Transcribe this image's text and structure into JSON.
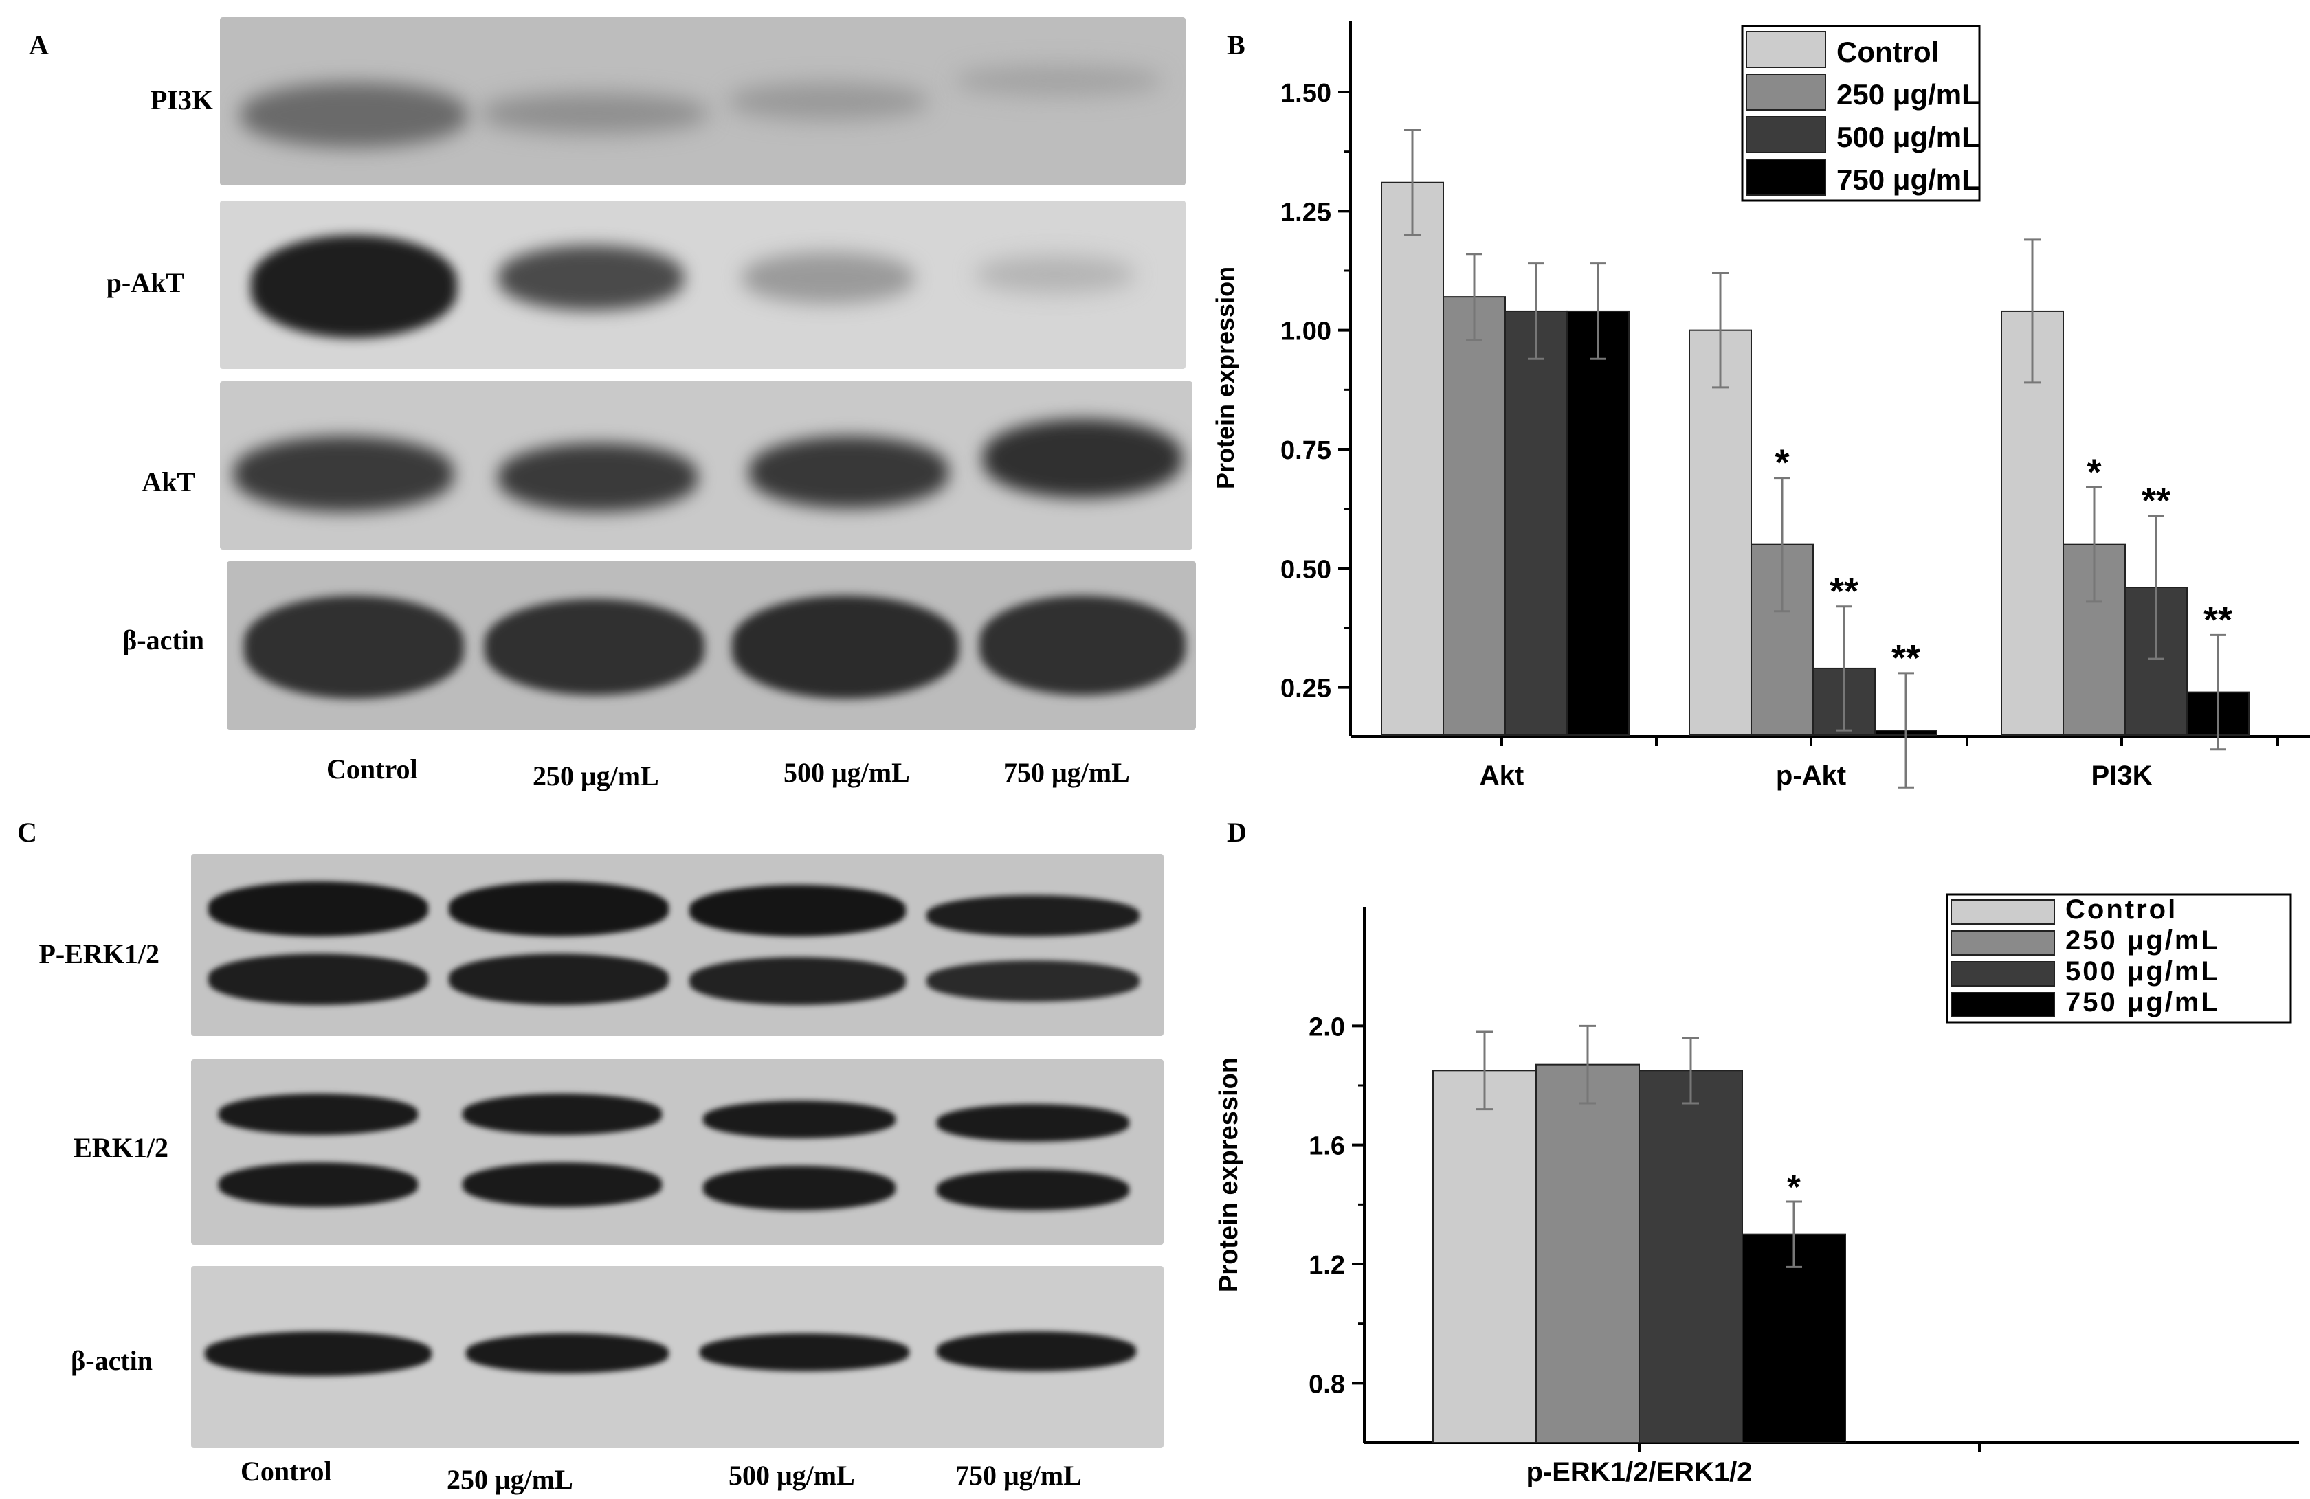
{
  "panels": {
    "A": {
      "letter": "A",
      "rows": [
        {
          "label": "PI3K"
        },
        {
          "label": "p-AkT"
        },
        {
          "label": "AkT"
        },
        {
          "label": "β-actin"
        }
      ],
      "lanes": [
        "Control",
        "250 μg/mL",
        "500 μg/mL",
        "750 μg/mL"
      ]
    },
    "C": {
      "letter": "C",
      "rows": [
        {
          "label": "P-ERK1/2"
        },
        {
          "label": "ERK1/2"
        },
        {
          "label": "β-actin"
        }
      ],
      "lanes": [
        "Control",
        "250 μg/mL",
        "500 μg/mL",
        "750 μg/mL"
      ]
    },
    "B": {
      "letter": "B"
    },
    "D": {
      "letter": "D"
    }
  },
  "colors": {
    "control": "#cccccc",
    "d250": "#8a8a8a",
    "d500": "#3c3c3c",
    "d750": "#000000",
    "blot_bg": "#c8c8c8",
    "band_dark": "#151515"
  },
  "chart_data": [
    {
      "panel": "B",
      "type": "bar",
      "ylabel": "Protein expression",
      "ylim": [
        0.15,
        1.65
      ],
      "yticks": [
        "0.25",
        "0.50",
        "0.75",
        "1.00",
        "1.25",
        "1.50"
      ],
      "categories": [
        "Akt",
        "p-Akt",
        "PI3K"
      ],
      "legend_position": "top-right",
      "series": [
        {
          "name": "Control",
          "color": "#cccccc",
          "values": [
            1.31,
            1.0,
            1.04
          ],
          "errors": [
            0.11,
            0.12,
            0.15
          ],
          "marks": [
            "",
            "",
            ""
          ]
        },
        {
          "name": "250 μg/mL",
          "color": "#8a8a8a",
          "values": [
            1.07,
            0.55,
            0.55
          ],
          "errors": [
            0.09,
            0.14,
            0.12
          ],
          "marks": [
            "",
            "*",
            "*"
          ]
        },
        {
          "name": "500 μg/mL",
          "color": "#3c3c3c",
          "values": [
            1.04,
            0.29,
            0.46
          ],
          "errors": [
            0.1,
            0.13,
            0.15
          ],
          "marks": [
            "",
            "**",
            "**"
          ]
        },
        {
          "name": "750 μg/mL",
          "color": "#000000",
          "values": [
            1.04,
            0.16,
            0.24
          ],
          "errors": [
            0.1,
            0.12,
            0.12
          ],
          "marks": [
            "",
            "**",
            "**"
          ]
        }
      ]
    },
    {
      "panel": "D",
      "type": "bar",
      "ylabel": "Protein expression",
      "ylim": [
        0.6,
        2.4
      ],
      "yticks": [
        "0.8",
        "1.2",
        "1.6",
        "2.0"
      ],
      "categories": [
        "p-ERK1/2/ERK1/2"
      ],
      "legend_position": "top-right",
      "series": [
        {
          "name": "Control",
          "color": "#cccccc",
          "values": [
            1.85
          ],
          "errors": [
            0.13
          ],
          "marks": [
            ""
          ]
        },
        {
          "name": "250 μg/mL",
          "color": "#8a8a8a",
          "values": [
            1.87
          ],
          "errors": [
            0.13
          ],
          "marks": [
            ""
          ]
        },
        {
          "name": "500 μg/mL",
          "color": "#3c3c3c",
          "values": [
            1.85
          ],
          "errors": [
            0.11
          ],
          "marks": [
            ""
          ]
        },
        {
          "name": "750 μg/mL",
          "color": "#000000",
          "values": [
            1.3
          ],
          "errors": [
            0.11
          ],
          "marks": [
            "*"
          ]
        }
      ]
    }
  ]
}
